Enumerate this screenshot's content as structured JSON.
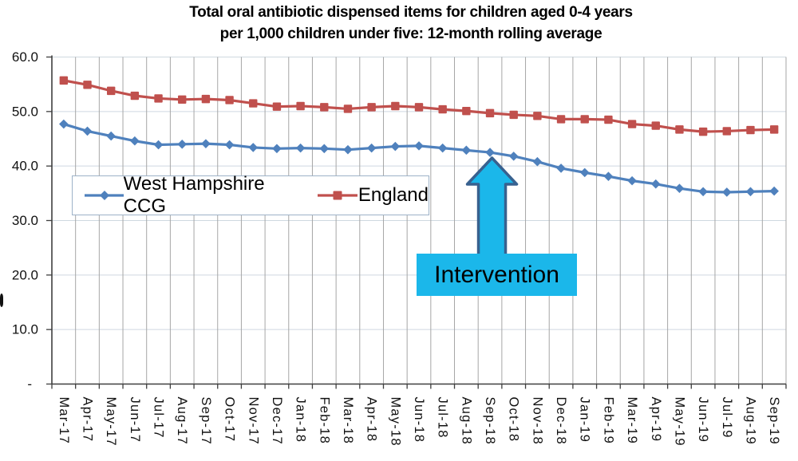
{
  "title": {
    "line1": "Total oral antibiotic dispensed items for children aged 0-4 years",
    "line2": "per 1,000 children under five: 12-month rolling average"
  },
  "chart_data": {
    "type": "line",
    "title": "Total oral antibiotic dispensed items for children aged 0-4 years per 1,000 children under five: 12-month rolling average",
    "categories": [
      "Mar-17",
      "Apr-17",
      "May-17",
      "Jun-17",
      "Jul-17",
      "Aug-17",
      "Sep-17",
      "Oct-17",
      "Nov-17",
      "Dec-17",
      "Jan-18",
      "Feb-18",
      "Mar-18",
      "Apr-18",
      "May-18",
      "Jun-18",
      "Jul-18",
      "Aug-18",
      "Sep-18",
      "Oct-18",
      "Nov-18",
      "Dec-18",
      "Jan-19",
      "Feb-19",
      "Mar-19",
      "Apr-19",
      "May-19",
      "Jun-19",
      "Jul-19",
      "Aug-19",
      "Sep-19"
    ],
    "series": [
      {
        "name": "West Hampshire CCG",
        "color": "#4F81BD",
        "marker": "diamond",
        "values": [
          47.7,
          46.4,
          45.5,
          44.6,
          43.9,
          44.0,
          44.1,
          43.9,
          43.4,
          43.2,
          43.3,
          43.2,
          43.0,
          43.3,
          43.6,
          43.7,
          43.3,
          42.9,
          42.5,
          41.8,
          40.8,
          39.6,
          38.8,
          38.1,
          37.3,
          36.7,
          35.9,
          35.3,
          35.2,
          35.3,
          35.4
        ]
      },
      {
        "name": "England",
        "color": "#C0504D",
        "marker": "square",
        "values": [
          55.7,
          54.9,
          53.8,
          52.9,
          52.4,
          52.2,
          52.3,
          52.1,
          51.5,
          50.9,
          51.0,
          50.8,
          50.5,
          50.8,
          51.0,
          50.8,
          50.4,
          50.1,
          49.7,
          49.4,
          49.2,
          48.6,
          48.6,
          48.5,
          47.7,
          47.4,
          46.7,
          46.3,
          46.4,
          46.6,
          46.7
        ]
      }
    ],
    "y_axis": {
      "min": 0,
      "max": 60,
      "step": 10,
      "tick_labels": [
        "-",
        "10.0",
        "20.0",
        "30.0",
        "40.0",
        "50.0",
        "60.0"
      ]
    },
    "x_axis": {
      "label_rotation": "vertical-down"
    },
    "grid": {
      "horizontal": true,
      "vertical": true,
      "horizontal_color": "#CFD8E0",
      "vertical_color": "#A6A6A6",
      "axis_color": "#3F3F3F"
    },
    "legend": {
      "position": "inside-top-left",
      "entries": [
        "West Hampshire CCG",
        "England"
      ]
    },
    "annotation": {
      "label": "Intervention",
      "target_category": "Sep-18",
      "box_fill": "#1BB7EA",
      "arrow_fill": "#1BB7EA",
      "arrow_outline": "#38618F",
      "text_color": "#000000"
    }
  }
}
